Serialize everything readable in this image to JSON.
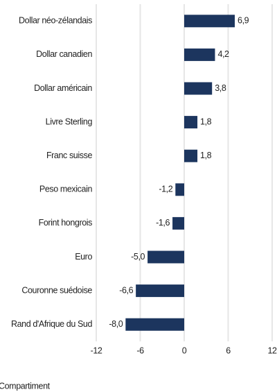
{
  "chart_data": {
    "type": "bar",
    "orientation": "horizontal",
    "categories": [
      "Dollar néo-zélandais",
      "Dollar canadien",
      "Dollar américain",
      "Livre Sterling",
      "Franc suisse",
      "Peso mexicain",
      "Forint hongrois",
      "Euro",
      "Couronne suédoise",
      "Rand d'Afrique du Sud"
    ],
    "values": [
      6.9,
      4.2,
      3.8,
      1.8,
      1.8,
      -1.2,
      -1.6,
      -5.0,
      -6.6,
      -8.0
    ],
    "value_labels": [
      "6,9",
      "4,2",
      "3,8",
      "1,8",
      "1,8",
      "-1,2",
      "-1,6",
      "-5,0",
      "-6,6",
      "-8,0"
    ],
    "color": "#1c355e",
    "xlim": [
      -12,
      12
    ],
    "xticks": [
      -12,
      -6,
      0,
      6,
      12
    ],
    "grid": true,
    "note": "Compartiment"
  }
}
